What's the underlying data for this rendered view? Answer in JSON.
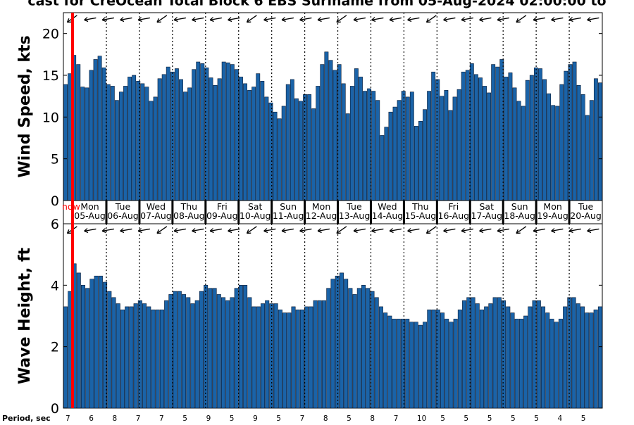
{
  "title": "cast for CreOcean Total Block 6 EBS Suriname from 05-Aug-2024 02:00:00 to",
  "now_label": "now",
  "period_label": "Period, sec",
  "colors": {
    "bar": "#1a63a8",
    "bar_edge": "#0a1a33",
    "now_line": "#ff0000",
    "now_text": "#ff0000"
  },
  "days": [
    {
      "dow": "Mon",
      "date": "05-Aug"
    },
    {
      "dow": "Tue",
      "date": "06-Aug"
    },
    {
      "dow": "Wed",
      "date": "07-Aug"
    },
    {
      "dow": "Thu",
      "date": "08-Aug"
    },
    {
      "dow": "Fri",
      "date": "09-Aug"
    },
    {
      "dow": "Sat",
      "date": "10-Aug"
    },
    {
      "dow": "Sun",
      "date": "11-Aug"
    },
    {
      "dow": "Mon",
      "date": "12-Aug"
    },
    {
      "dow": "Tue",
      "date": "13-Aug"
    },
    {
      "dow": "Wed",
      "date": "14-Aug"
    },
    {
      "dow": "Thu",
      "date": "15-Aug"
    },
    {
      "dow": "Fri",
      "date": "16-Aug"
    },
    {
      "dow": "Sat",
      "date": "17-Aug"
    },
    {
      "dow": "Sun",
      "date": "18-Aug"
    },
    {
      "dow": "Mon",
      "date": "19-Aug"
    },
    {
      "dow": "Tue",
      "date": "20-Aug"
    }
  ],
  "chart_data": [
    {
      "type": "bar",
      "ylabel": "Wind Speed, kts",
      "ylim": [
        0,
        22.5
      ],
      "yticks": [
        0,
        5,
        10,
        15,
        20
      ],
      "grid": "vertical dotted at day boundaries",
      "values": [
        13.9,
        15.2,
        17.4,
        16.3,
        13.6,
        13.5,
        15.6,
        16.9,
        17.3,
        15.9,
        13.9,
        13.7,
        12.0,
        13.0,
        13.7,
        14.8,
        15.0,
        14.3,
        14.0,
        13.6,
        11.9,
        12.4,
        14.6,
        15.1,
        16.0,
        15.4,
        15.8,
        14.5,
        13.0,
        13.5,
        15.7,
        16.6,
        16.4,
        15.9,
        14.7,
        13.8,
        14.6,
        16.6,
        16.5,
        16.3,
        15.7,
        14.8,
        14.0,
        13.2,
        13.6,
        15.2,
        14.3,
        12.4,
        11.7,
        10.6,
        9.8,
        11.3,
        13.9,
        14.5,
        12.2,
        11.9,
        12.7,
        12.7,
        11.0,
        13.7,
        16.3,
        17.8,
        16.8,
        15.6,
        16.3,
        14.0,
        10.4,
        13.7,
        15.8,
        14.8,
        13.1,
        13.4,
        13.1,
        12.0,
        7.8,
        8.8,
        10.6,
        11.2,
        12.0,
        13.1,
        12.4,
        13.0,
        8.9,
        9.5,
        10.9,
        13.1,
        15.4,
        14.5,
        12.5,
        13.2,
        10.8,
        12.4,
        13.3,
        15.4,
        15.6,
        16.4,
        15.1,
        14.7,
        13.7,
        12.9,
        16.3,
        16.0,
        16.9,
        14.8,
        15.3,
        13.5,
        11.9,
        11.3,
        14.4,
        15.0,
        15.9,
        15.8,
        14.5,
        12.8,
        11.4,
        11.3,
        13.9,
        15.5,
        16.3,
        16.6,
        13.8,
        12.7,
        10.2,
        12.0,
        14.6,
        14.1
      ]
    },
    {
      "type": "bar",
      "ylabel": "Wave Height, ft",
      "ylim": [
        0,
        6
      ],
      "yticks": [
        0,
        2,
        4,
        6
      ],
      "grid": "vertical dotted at day boundaries",
      "values": [
        3.3,
        3.8,
        4.7,
        4.4,
        4.0,
        3.9,
        4.2,
        4.3,
        4.3,
        4.1,
        3.8,
        3.6,
        3.4,
        3.2,
        3.3,
        3.3,
        3.4,
        3.5,
        3.4,
        3.3,
        3.2,
        3.2,
        3.2,
        3.5,
        3.7,
        3.8,
        3.8,
        3.7,
        3.6,
        3.4,
        3.5,
        3.8,
        4.0,
        3.9,
        3.9,
        3.7,
        3.6,
        3.5,
        3.6,
        3.9,
        4.0,
        4.0,
        3.6,
        3.3,
        3.3,
        3.4,
        3.5,
        3.4,
        3.4,
        3.2,
        3.1,
        3.1,
        3.3,
        3.2,
        3.2,
        3.3,
        3.3,
        3.5,
        3.5,
        3.5,
        3.9,
        4.2,
        4.3,
        4.4,
        4.2,
        3.9,
        3.7,
        3.9,
        4.0,
        3.9,
        3.8,
        3.6,
        3.3,
        3.1,
        3.0,
        2.9,
        2.9,
        2.9,
        2.9,
        2.8,
        2.8,
        2.7,
        2.8,
        3.2,
        3.2,
        3.2,
        3.1,
        2.9,
        2.8,
        2.9,
        3.2,
        3.5,
        3.6,
        3.6,
        3.4,
        3.2,
        3.3,
        3.4,
        3.6,
        3.6,
        3.5,
        3.3,
        3.1,
        2.9,
        2.9,
        3.0,
        3.3,
        3.5,
        3.5,
        3.3,
        3.1,
        2.9,
        2.8,
        2.9,
        3.3,
        3.6,
        3.6,
        3.4,
        3.3,
        3.1,
        3.1,
        3.2,
        3.3
      ]
    }
  ],
  "period_values": [
    "7",
    "6",
    "8",
    "7",
    "7",
    "5",
    "9",
    "5",
    "9",
    "5",
    "7",
    "8",
    "5",
    "8",
    "7",
    "10",
    "5",
    "5",
    "5",
    "5",
    "5",
    "4",
    "5"
  ]
}
